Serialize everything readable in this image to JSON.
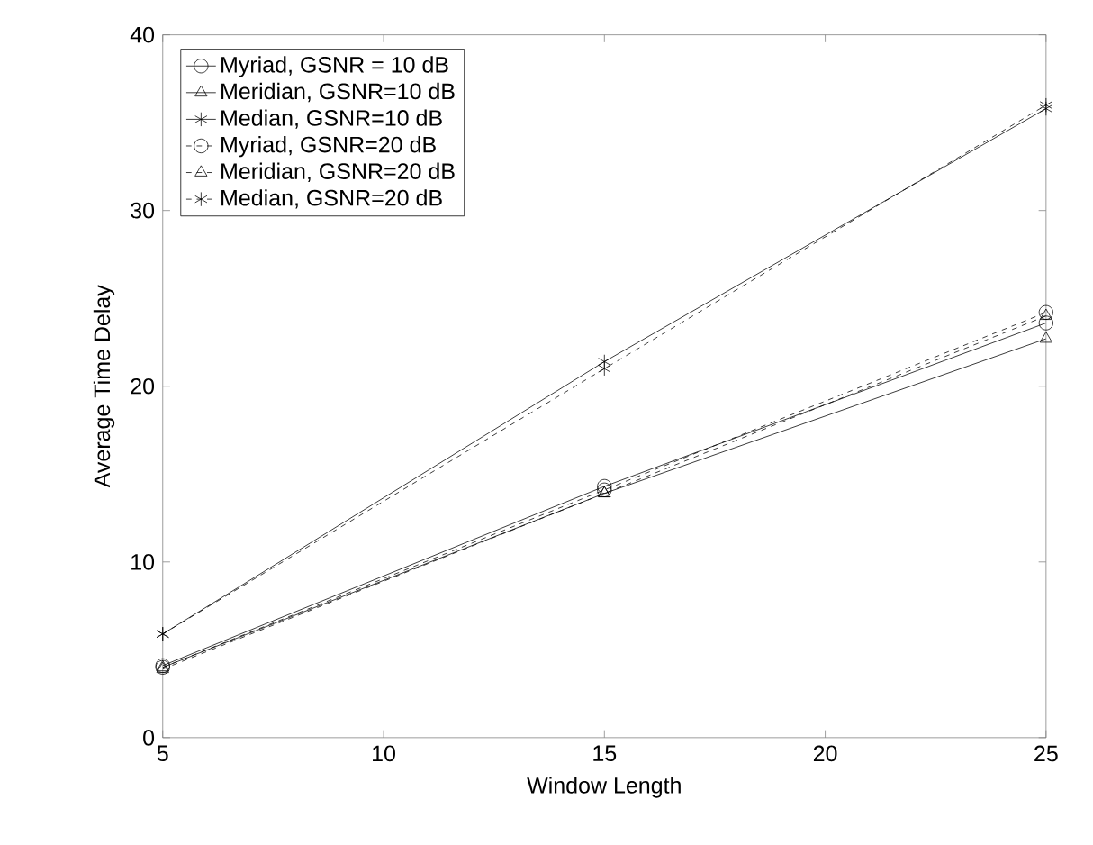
{
  "chart_data": {
    "type": "line",
    "xlabel": "Window Length",
    "ylabel": "Average Time Delay",
    "x": [
      5,
      15,
      25
    ],
    "xlim": [
      5,
      25
    ],
    "xticks": [
      5,
      10,
      15,
      20,
      25
    ],
    "ylim": [
      0,
      40
    ],
    "yticks": [
      0,
      10,
      20,
      30,
      40
    ],
    "grid": false,
    "legend": "top left",
    "series": [
      {
        "name": "Myriad, GSNR = 10 dB",
        "color": "#000000",
        "marker": "circle",
        "line_style": "solid",
        "values": [
          4.1,
          14.3,
          23.6
        ]
      },
      {
        "name": "Meridian, GSNR=10 dB",
        "color": "#000000",
        "marker": "triangle",
        "line_style": "solid",
        "values": [
          4.0,
          13.9,
          22.7
        ]
      },
      {
        "name": "Median, GSNR=10 dB",
        "color": "#000000",
        "marker": "cross",
        "line_style": "solid",
        "values": [
          5.9,
          21.4,
          35.8
        ]
      },
      {
        "name": "Myriad, GSNR=20 dB",
        "color": "#000000",
        "marker": "circle",
        "line_style": "dashed",
        "values": [
          4.0,
          14.1,
          24.2
        ]
      },
      {
        "name": "Meridian, GSNR=20 dB",
        "color": "#000000",
        "marker": "triangle",
        "line_style": "dashed",
        "values": [
          3.9,
          13.9,
          24.0
        ]
      },
      {
        "name": "Median, GSNR=20 dB",
        "color": "#000000",
        "marker": "cross",
        "line_style": "dashed",
        "values": [
          5.9,
          21.0,
          36.0
        ]
      }
    ]
  }
}
